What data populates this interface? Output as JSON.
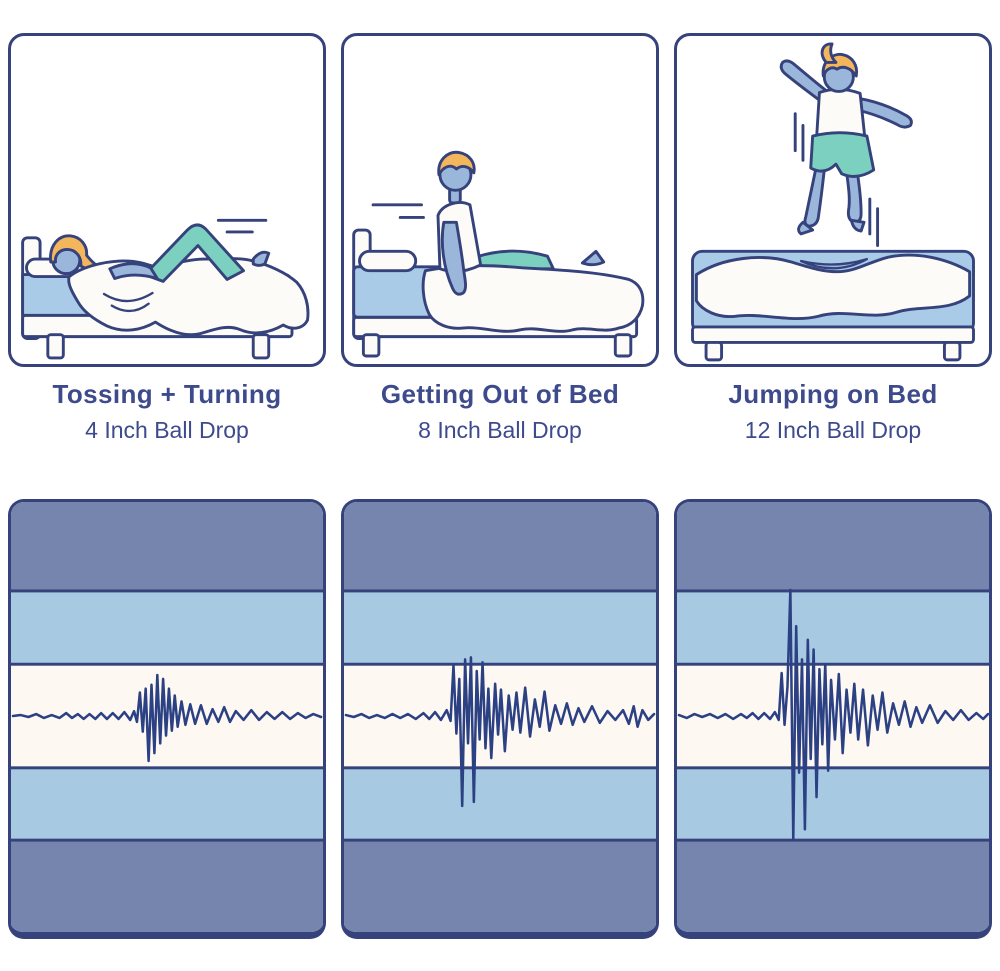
{
  "palette": {
    "outline": "#35427b",
    "text": "#3d4a8c",
    "skin": "#9ab7db",
    "hair": "#f4b65c",
    "teal": "#7bd0c0",
    "blanket": "#fdfbf7",
    "mattress": "#a9cbe8",
    "stripe_dark": "#7585ad",
    "stripe_light": "#a8c9e2",
    "stripe_cream": "#fdf8f2",
    "wave": "#2c4184",
    "card_bg": "#ffffff"
  },
  "cards": [
    {
      "title": "Tossing + Turning",
      "subtitle": "4 Inch Ball Drop",
      "illustration": "person tossing and turning in bed"
    },
    {
      "title": "Getting Out of Bed",
      "subtitle": "8 Inch Ball Drop",
      "illustration": "person sitting up on edge of bed"
    },
    {
      "title": "Jumping on Bed",
      "subtitle": "12 Inch Ball Drop",
      "illustration": "child jumping above bed"
    }
  ],
  "seismographs": [
    {
      "name": "4-inch-ball-drop-vibration",
      "points": [
        [
          2,
          0
        ],
        [
          10,
          1
        ],
        [
          18,
          -1
        ],
        [
          26,
          2
        ],
        [
          34,
          -2
        ],
        [
          42,
          1
        ],
        [
          50,
          -2
        ],
        [
          57,
          3
        ],
        [
          63,
          -2
        ],
        [
          69,
          2
        ],
        [
          75,
          -3
        ],
        [
          81,
          2
        ],
        [
          87,
          -3
        ],
        [
          93,
          3
        ],
        [
          99,
          -3
        ],
        [
          105,
          3
        ],
        [
          111,
          -3
        ],
        [
          117,
          4
        ],
        [
          123,
          -4
        ],
        [
          127,
          5
        ],
        [
          130,
          -6
        ],
        [
          133,
          24
        ],
        [
          136,
          -16
        ],
        [
          139,
          28
        ],
        [
          142,
          -46
        ],
        [
          145,
          32
        ],
        [
          148,
          -38
        ],
        [
          151,
          42
        ],
        [
          154,
          -28
        ],
        [
          157,
          38
        ],
        [
          160,
          -20
        ],
        [
          163,
          28
        ],
        [
          166,
          -15
        ],
        [
          169,
          21
        ],
        [
          172,
          -11
        ],
        [
          176,
          15
        ],
        [
          180,
          -9
        ],
        [
          185,
          12
        ],
        [
          190,
          -8
        ],
        [
          196,
          11
        ],
        [
          202,
          -8
        ],
        [
          208,
          7
        ],
        [
          214,
          -6
        ],
        [
          220,
          9
        ],
        [
          226,
          -6
        ],
        [
          232,
          5
        ],
        [
          240,
          -4
        ],
        [
          248,
          6
        ],
        [
          256,
          -4
        ],
        [
          264,
          4
        ],
        [
          272,
          -3
        ],
        [
          280,
          4
        ],
        [
          288,
          -3
        ],
        [
          296,
          3
        ],
        [
          304,
          -2
        ],
        [
          312,
          2
        ],
        [
          320,
          -1
        ]
      ]
    },
    {
      "name": "8-inch-ball-drop-vibration",
      "points": [
        [
          2,
          1
        ],
        [
          10,
          -1
        ],
        [
          18,
          2
        ],
        [
          26,
          -2
        ],
        [
          34,
          1
        ],
        [
          42,
          -2
        ],
        [
          50,
          2
        ],
        [
          58,
          -2
        ],
        [
          66,
          2
        ],
        [
          74,
          -3
        ],
        [
          82,
          3
        ],
        [
          88,
          -3
        ],
        [
          94,
          4
        ],
        [
          100,
          -4
        ],
        [
          106,
          6
        ],
        [
          110,
          -5
        ],
        [
          113,
          52
        ],
        [
          116,
          -18
        ],
        [
          119,
          38
        ],
        [
          122,
          -92
        ],
        [
          125,
          58
        ],
        [
          128,
          -28
        ],
        [
          131,
          60
        ],
        [
          134,
          -88
        ],
        [
          137,
          46
        ],
        [
          140,
          -24
        ],
        [
          143,
          55
        ],
        [
          146,
          -33
        ],
        [
          149,
          28
        ],
        [
          152,
          -43
        ],
        [
          156,
          33
        ],
        [
          159,
          -19
        ],
        [
          162,
          27
        ],
        [
          166,
          -36
        ],
        [
          170,
          21
        ],
        [
          174,
          -14
        ],
        [
          178,
          24
        ],
        [
          182,
          -17
        ],
        [
          187,
          29
        ],
        [
          192,
          -21
        ],
        [
          197,
          17
        ],
        [
          202,
          -11
        ],
        [
          207,
          25
        ],
        [
          212,
          -15
        ],
        [
          218,
          11
        ],
        [
          224,
          -8
        ],
        [
          230,
          13
        ],
        [
          236,
          -9
        ],
        [
          242,
          8
        ],
        [
          248,
          -6
        ],
        [
          256,
          10
        ],
        [
          264,
          -7
        ],
        [
          272,
          5
        ],
        [
          280,
          -4
        ],
        [
          288,
          6
        ],
        [
          294,
          -8
        ],
        [
          299,
          10
        ],
        [
          303,
          -11
        ],
        [
          308,
          6
        ],
        [
          314,
          -4
        ],
        [
          320,
          2
        ]
      ]
    },
    {
      "name": "12-inch-ball-drop-vibration",
      "points": [
        [
          2,
          1
        ],
        [
          10,
          -2
        ],
        [
          18,
          2
        ],
        [
          26,
          -1
        ],
        [
          34,
          2
        ],
        [
          42,
          -2
        ],
        [
          50,
          2
        ],
        [
          58,
          -3
        ],
        [
          66,
          2
        ],
        [
          72,
          -2
        ],
        [
          78,
          3
        ],
        [
          84,
          -3
        ],
        [
          90,
          3
        ],
        [
          96,
          -3
        ],
        [
          101,
          4
        ],
        [
          105,
          -4
        ],
        [
          108,
          44
        ],
        [
          111,
          -9
        ],
        [
          114,
          30
        ],
        [
          117,
          129
        ],
        [
          120,
          -126
        ],
        [
          123,
          92
        ],
        [
          126,
          -58
        ],
        [
          129,
          58
        ],
        [
          132,
          -116
        ],
        [
          135,
          78
        ],
        [
          138,
          -44
        ],
        [
          141,
          68
        ],
        [
          144,
          -83
        ],
        [
          147,
          48
        ],
        [
          150,
          -29
        ],
        [
          153,
          53
        ],
        [
          156,
          -56
        ],
        [
          159,
          37
        ],
        [
          163,
          -24
        ],
        [
          167,
          43
        ],
        [
          171,
          -38
        ],
        [
          175,
          27
        ],
        [
          179,
          -17
        ],
        [
          183,
          33
        ],
        [
          187,
          -24
        ],
        [
          192,
          27
        ],
        [
          197,
          -30
        ],
        [
          202,
          21
        ],
        [
          207,
          -14
        ],
        [
          212,
          24
        ],
        [
          217,
          -17
        ],
        [
          223,
          13
        ],
        [
          229,
          -9
        ],
        [
          235,
          15
        ],
        [
          241,
          -11
        ],
        [
          247,
          9
        ],
        [
          253,
          -7
        ],
        [
          261,
          11
        ],
        [
          269,
          -7
        ],
        [
          277,
          5
        ],
        [
          285,
          -4
        ],
        [
          293,
          6
        ],
        [
          301,
          -4
        ],
        [
          309,
          3
        ],
        [
          316,
          -3
        ],
        [
          321,
          2
        ]
      ]
    }
  ]
}
